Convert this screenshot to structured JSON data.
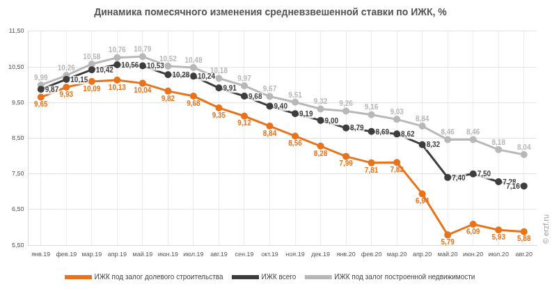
{
  "chart_data": {
    "type": "line",
    "title": "Динамика помесячного изменения средневзвешенной ставки по ИЖК, %",
    "categories": [
      "янв.19",
      "фев.19",
      "мар.19",
      "апр.19",
      "май.19",
      "июн.19",
      "июл.19",
      "авг.19",
      "сен.19",
      "окт.19",
      "ноя.19",
      "дек.19",
      "янв.20",
      "фев.20",
      "мар.20",
      "апр.20",
      "май.20",
      "июн.20",
      "июл.20",
      "авг.20"
    ],
    "series": [
      {
        "name": "ИЖК под залог долевого строительства",
        "color": "#e8731a",
        "marker": "circle",
        "values": [
          9.65,
          9.93,
          10.09,
          10.13,
          10.04,
          9.82,
          9.68,
          9.35,
          9.12,
          8.84,
          8.56,
          8.28,
          7.99,
          7.81,
          7.82,
          6.94,
          5.79,
          6.09,
          5.93,
          5.88
        ],
        "value_labels": [
          "9,65",
          "9,93",
          "10,09",
          "10,13",
          "10,04",
          "9,82",
          "9,68",
          "9,35",
          "9,12",
          "8,84",
          "8,56",
          "8,28",
          "7,99",
          "7,81",
          "7,82",
          "6,94",
          "5,79",
          "6,09",
          "5,93",
          "5,88"
        ]
      },
      {
        "name": "ИЖК всего",
        "color": "#3d3d3d",
        "marker": "circle",
        "values": [
          9.87,
          10.15,
          10.42,
          10.56,
          10.53,
          10.28,
          10.24,
          9.91,
          9.68,
          9.4,
          9.19,
          9.0,
          8.79,
          8.69,
          8.62,
          8.32,
          7.4,
          7.5,
          7.28,
          7.16
        ],
        "value_labels": [
          "9,87",
          "10,15",
          "10,42",
          "10,56",
          "10,53",
          "10,28",
          "10,24",
          "9,91",
          "9,68",
          "9,40",
          "9,19",
          "9,00",
          "8,79",
          "8,69",
          "8,62",
          "8,32",
          "7,40",
          "7,50",
          "7,28",
          "7,16"
        ]
      },
      {
        "name": "ИЖК под залог построенной недвижимости",
        "color": "#b8b8b8",
        "marker": "circle",
        "values": [
          9.99,
          10.26,
          10.58,
          10.76,
          10.79,
          10.52,
          10.48,
          10.18,
          9.97,
          9.67,
          9.51,
          9.32,
          9.26,
          9.16,
          9.03,
          8.84,
          8.46,
          8.46,
          8.18,
          8.04
        ],
        "value_labels": [
          "9,99",
          "10,26",
          "10,58",
          "10,76",
          "10,79",
          "10,52",
          "10,48",
          "10,18",
          "9,97",
          "9,67",
          "9,51",
          "9,32",
          "9,26",
          "9,16",
          "9,03",
          "8,84",
          "8,46",
          "8,46",
          "8,18",
          "8,04"
        ]
      }
    ],
    "ylim": [
      5.5,
      11.5
    ],
    "yticks": [
      {
        "value": 5.5,
        "label": "5,50"
      },
      {
        "value": 6.5,
        "label": "6,50"
      },
      {
        "value": 7.5,
        "label": "7,50"
      },
      {
        "value": 8.5,
        "label": "8,50"
      },
      {
        "value": 9.5,
        "label": "9,50"
      },
      {
        "value": 10.5,
        "label": "10,50"
      },
      {
        "value": 11.5,
        "label": "11,50"
      }
    ],
    "grid": true,
    "legend": "bottom",
    "data_labels": true,
    "annotations": [
      "© erzf.ru"
    ]
  }
}
